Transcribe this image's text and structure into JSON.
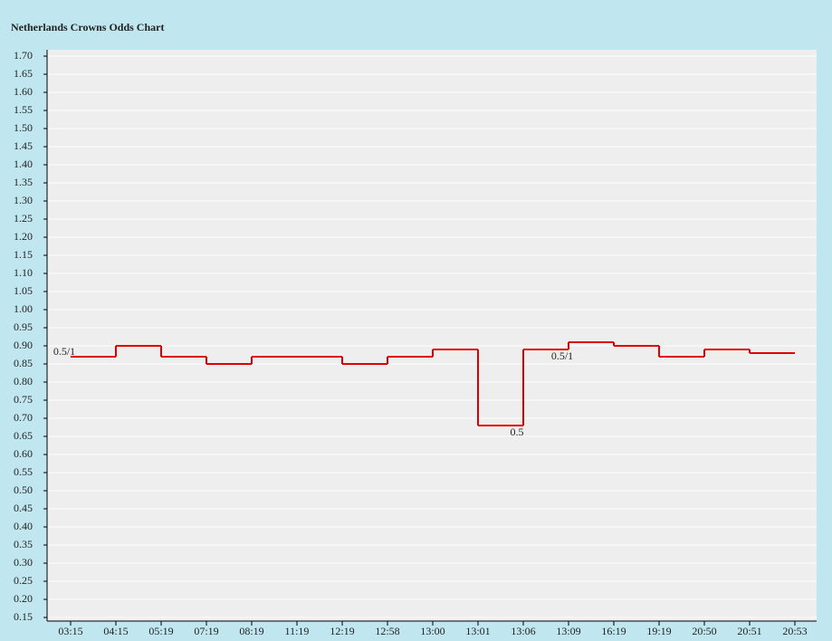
{
  "chart_data": {
    "type": "step",
    "title": "Netherlands Crowns Odds Chart",
    "categories": [
      "03:15",
      "04:15",
      "05:19",
      "07:19",
      "08:19",
      "11:19",
      "12:19",
      "12:58",
      "13:00",
      "13:01",
      "13:06",
      "13:09",
      "16:19",
      "19:19",
      "20:50",
      "20:51",
      "20:53"
    ],
    "series": [
      {
        "color": "#e00000",
        "values": [
          0.87,
          0.9,
          0.87,
          0.85,
          0.87,
          0.87,
          0.85,
          0.87,
          0.89,
          0.68,
          0.89,
          0.91,
          0.9,
          0.87,
          0.89,
          0.88,
          0.88
        ]
      }
    ],
    "annotations": [
      {
        "text": "0.5/1",
        "at": 0
      },
      {
        "text": "0.5",
        "at": 10
      },
      {
        "text": "0.5/1",
        "at": 11
      }
    ],
    "ylim": [
      0.15,
      1.7
    ],
    "yticks": [
      {
        "value": 0.15,
        "label": "0.15"
      },
      {
        "value": 0.2,
        "label": "0.20"
      },
      {
        "value": 0.25,
        "label": "0.25"
      },
      {
        "value": 0.3,
        "label": "0.30"
      },
      {
        "value": 0.35,
        "label": "0.35"
      },
      {
        "value": 0.4,
        "label": "0.40"
      },
      {
        "value": 0.45,
        "label": "0.45"
      },
      {
        "value": 0.5,
        "label": "0.50"
      },
      {
        "value": 0.55,
        "label": "0.55"
      },
      {
        "value": 0.6,
        "label": "0.60"
      },
      {
        "value": 0.65,
        "label": "0.65"
      },
      {
        "value": 0.7,
        "label": "0.70"
      },
      {
        "value": 0.75,
        "label": "0.75"
      },
      {
        "value": 0.8,
        "label": "0.80"
      },
      {
        "value": 0.85,
        "label": "0.85"
      },
      {
        "value": 0.9,
        "label": "0.90"
      },
      {
        "value": 0.95,
        "label": "0.95"
      },
      {
        "value": 1.0,
        "label": "1.00"
      },
      {
        "value": 1.05,
        "label": "1.05"
      },
      {
        "value": 1.1,
        "label": "1.10"
      },
      {
        "value": 1.15,
        "label": "1.15"
      },
      {
        "value": 1.2,
        "label": "1.20"
      },
      {
        "value": 1.25,
        "label": "1.25"
      },
      {
        "value": 1.3,
        "label": "1.30"
      },
      {
        "value": 1.35,
        "label": "1.35"
      },
      {
        "value": 1.4,
        "label": "1.40"
      },
      {
        "value": 1.45,
        "label": "1.45"
      },
      {
        "value": 1.5,
        "label": "1.50"
      },
      {
        "value": 1.55,
        "label": "1.55"
      },
      {
        "value": 1.6,
        "label": "1.60"
      },
      {
        "value": 1.65,
        "label": "1.65"
      },
      {
        "value": 1.7,
        "label": "1.70"
      }
    ],
    "grid": true
  }
}
